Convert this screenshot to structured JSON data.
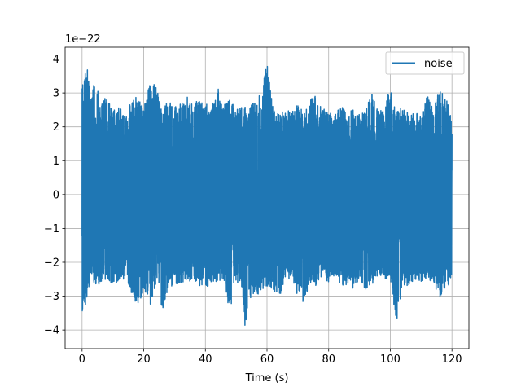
{
  "chart_data": {
    "type": "line",
    "title": "",
    "xlabel": "Time (s)",
    "ylabel": "",
    "y_offset_text": "1e−22",
    "xlim": [
      -5.5,
      125.5
    ],
    "ylim": [
      -4.55,
      4.35
    ],
    "x_ticks": [
      0,
      20,
      40,
      60,
      80,
      100,
      120
    ],
    "x_tick_labels": [
      "0",
      "20",
      "40",
      "60",
      "80",
      "100",
      "120"
    ],
    "y_ticks": [
      -4,
      -3,
      -2,
      -1,
      0,
      1,
      2,
      3,
      4
    ],
    "y_tick_labels": [
      "−4",
      "−3",
      "−2",
      "−1",
      "0",
      "1",
      "2",
      "3",
      "4"
    ],
    "grid": true,
    "legend": {
      "position": "top-right",
      "entries": [
        "noise"
      ]
    },
    "series": [
      {
        "name": "noise",
        "color": "#1f77b4",
        "x_range": [
          0,
          120
        ],
        "envelope": {
          "x": [
            0,
            1,
            2,
            3,
            4,
            6,
            8,
            10,
            12,
            14,
            16,
            18,
            20,
            22,
            24,
            26,
            28,
            30,
            32,
            34,
            36,
            38,
            40,
            42,
            44,
            46,
            48,
            50,
            52,
            53,
            54,
            56,
            58,
            60,
            62,
            64,
            66,
            68,
            70,
            72,
            74,
            76,
            78,
            80,
            82,
            84,
            86,
            88,
            90,
            92,
            94,
            96,
            98,
            100,
            102,
            104,
            106,
            108,
            110,
            112,
            114,
            116,
            118,
            120
          ],
          "upper": [
            3.5,
            3.6,
            3.8,
            2.7,
            3.6,
            2.8,
            2.9,
            2.5,
            2.6,
            2.4,
            2.8,
            2.9,
            2.6,
            3.3,
            3.3,
            2.4,
            2.9,
            2.6,
            2.7,
            2.9,
            2.7,
            2.8,
            2.7,
            2.6,
            3.2,
            2.7,
            2.8,
            2.5,
            2.6,
            2.7,
            2.5,
            2.8,
            3.0,
            3.9,
            2.5,
            2.4,
            2.5,
            2.5,
            2.7,
            2.4,
            2.8,
            3.0,
            2.6,
            2.4,
            2.4,
            2.6,
            2.5,
            2.5,
            2.4,
            2.5,
            3.0,
            2.5,
            2.5,
            3.2,
            2.5,
            2.6,
            2.4,
            2.4,
            2.4,
            3.0,
            2.6,
            3.1,
            2.9,
            2.2
          ],
          "lower": [
            -3.5,
            -3.4,
            -2.8,
            -2.6,
            -2.7,
            -2.7,
            -2.6,
            -2.6,
            -2.7,
            -2.5,
            -2.9,
            -3.4,
            -2.9,
            -3.3,
            -2.6,
            -3.5,
            -2.7,
            -2.7,
            -2.6,
            -2.6,
            -2.5,
            -2.7,
            -2.8,
            -2.6,
            -2.6,
            -2.6,
            -3.5,
            -2.6,
            -2.9,
            -4.1,
            -3.1,
            -3.0,
            -2.9,
            -2.7,
            -2.8,
            -3.2,
            -2.4,
            -2.6,
            -3.0,
            -3.2,
            -2.6,
            -2.7,
            -2.4,
            -2.6,
            -2.4,
            -2.7,
            -2.7,
            -2.8,
            -2.6,
            -2.8,
            -2.7,
            -2.4,
            -2.5,
            -2.5,
            -3.8,
            -2.7,
            -2.7,
            -2.5,
            -2.6,
            -2.5,
            -2.6,
            -3.1,
            -2.9,
            -2.4
          ]
        }
      }
    ]
  }
}
